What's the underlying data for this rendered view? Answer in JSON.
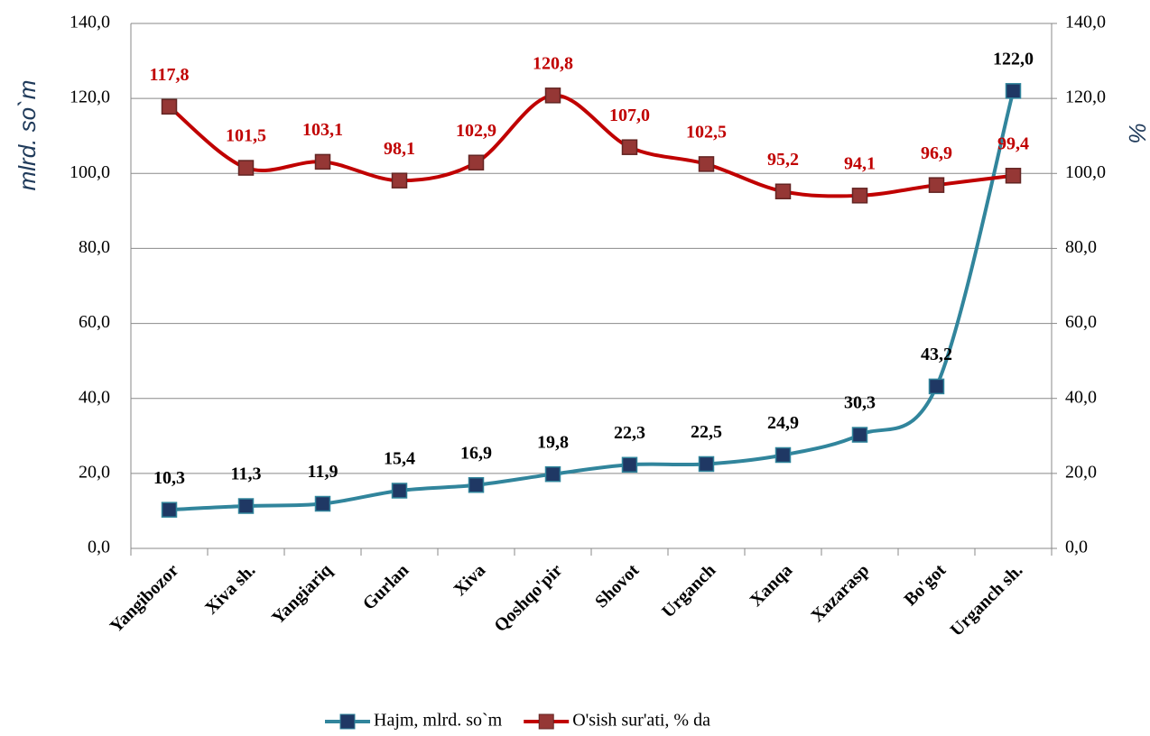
{
  "chart_data": {
    "type": "line",
    "categories": [
      "Yangibozor",
      "Xiva sh.",
      "Yangiariq",
      "Gurlan",
      "Xiva",
      "Qoshqo'pir",
      "Shovot",
      "Urganch",
      "Xanqa",
      "Xazarasp",
      "Bo'got",
      "Urganch sh."
    ],
    "series": [
      {
        "name": "Hajm, mlrd. so`m",
        "color": "#31859c",
        "marker_color": "#1f3864",
        "axis": "y",
        "values": [
          10.3,
          11.3,
          11.9,
          15.4,
          16.9,
          19.8,
          22.3,
          22.5,
          24.9,
          30.3,
          43.2,
          122.0
        ],
        "value_labels": [
          "10,3",
          "11,3",
          "11,9",
          "15,4",
          "16,9",
          "19,8",
          "22,3",
          "22,5",
          "24,9",
          "30,3",
          "43,2",
          "122,0"
        ]
      },
      {
        "name": "O'sish sur'ati, % da",
        "color": "#c00000",
        "marker_color": "#953735",
        "axis": "y2",
        "values": [
          117.8,
          101.5,
          103.1,
          98.1,
          102.9,
          120.8,
          107.0,
          102.5,
          95.2,
          94.1,
          96.9,
          99.4
        ],
        "value_labels": [
          "117,8",
          "101,5",
          "103,1",
          "98,1",
          "102,9",
          "120,8",
          "107,0",
          "102,5",
          "95,2",
          "94,1",
          "96,9",
          "99,4"
        ]
      }
    ],
    "ylabel": "mlrd. so`m",
    "y2label": "%",
    "ylim": [
      0,
      140
    ],
    "yticks": [
      {
        "value": 0,
        "label": "0,0"
      },
      {
        "value": 20,
        "label": "20,0"
      },
      {
        "value": 40,
        "label": "40,0"
      },
      {
        "value": 60,
        "label": "60,0"
      },
      {
        "value": 80,
        "label": "80,0"
      },
      {
        "value": 100,
        "label": "100,0"
      },
      {
        "value": 120,
        "label": "120,0"
      },
      {
        "value": 140,
        "label": "140,0"
      }
    ],
    "y2lim": [
      0,
      140
    ],
    "y2ticks": [
      {
        "value": 0,
        "label": "0,0"
      },
      {
        "value": 20,
        "label": "20,0"
      },
      {
        "value": 40,
        "label": "40,0"
      },
      {
        "value": 60,
        "label": "60,0"
      },
      {
        "value": 80,
        "label": "80,0"
      },
      {
        "value": 100,
        "label": "100,0"
      },
      {
        "value": 120,
        "label": "120,0"
      },
      {
        "value": 140,
        "label": "140,0"
      }
    ],
    "grid": true,
    "legend": "bottom",
    "smooth": true
  }
}
